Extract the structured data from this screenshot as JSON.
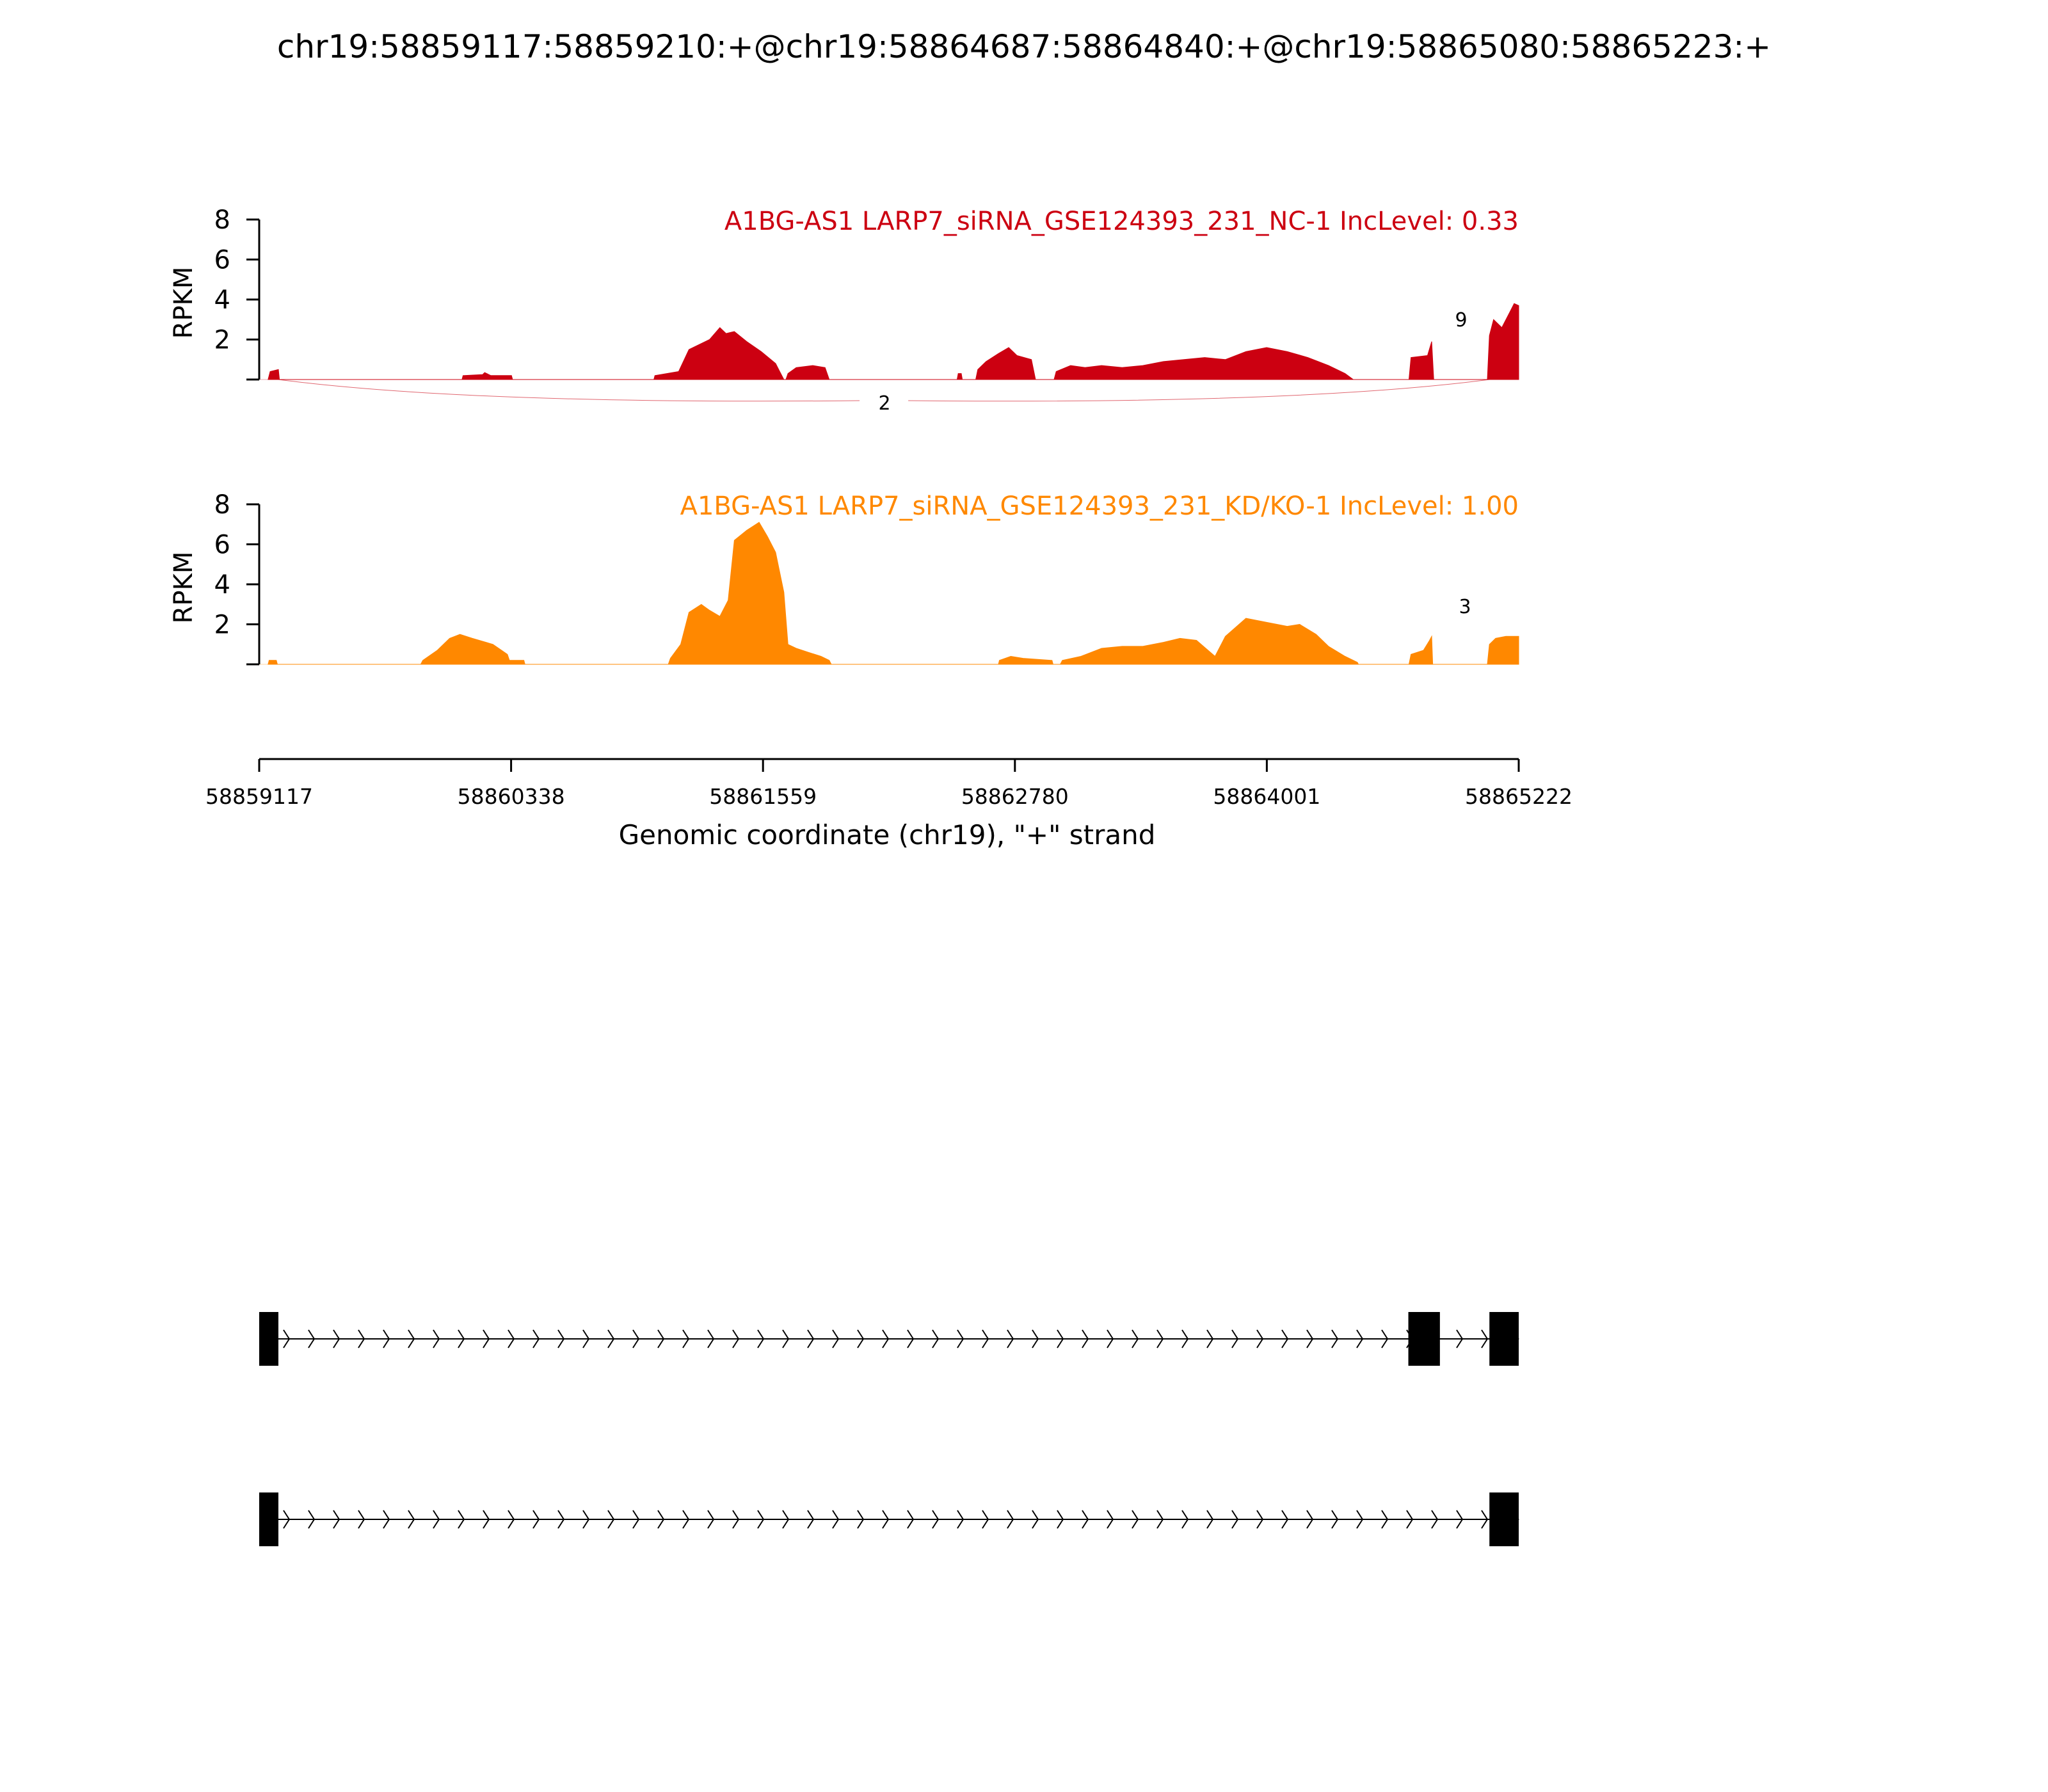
{
  "title": "chr19:58859117:58859210:+@chr19:58864687:58864840:+@chr19:58865080:58865223:+",
  "chart_data": {
    "type": "area",
    "xlabel": "Genomic coordinate (chr19), \"+\" strand",
    "xlim": [
      58859117,
      58865222
    ],
    "x_ticks": [
      "58859117",
      "58860338",
      "58861559",
      "58862780",
      "58864001",
      "58865222"
    ],
    "ylabel": "RPKM",
    "ylim": [
      0,
      8
    ],
    "y_ticks": [
      "8",
      "6",
      "4",
      "2"
    ],
    "tracks": [
      {
        "name": "A1BG-AS1 LARP7_siRNA_GSE124393_231_NC-1 IncLevel: 0.33",
        "color": "#cc0011",
        "profile": [
          [
            58859160,
            0
          ],
          [
            58859170,
            0.4
          ],
          [
            58859210,
            0.5
          ],
          [
            58859215,
            0
          ],
          [
            58860100,
            0
          ],
          [
            58860105,
            0.2
          ],
          [
            58860200,
            0.25
          ],
          [
            58860210,
            0.35
          ],
          [
            58860240,
            0.2
          ],
          [
            58860340,
            0.2
          ],
          [
            58860345,
            0
          ],
          [
            58861030,
            0
          ],
          [
            58861035,
            0.2
          ],
          [
            58861150,
            0.4
          ],
          [
            58861200,
            1.5
          ],
          [
            58861300,
            2.0
          ],
          [
            58861350,
            2.6
          ],
          [
            58861380,
            2.3
          ],
          [
            58861420,
            2.4
          ],
          [
            58861480,
            1.9
          ],
          [
            58861550,
            1.4
          ],
          [
            58861620,
            0.8
          ],
          [
            58861640,
            0.4
          ],
          [
            58861660,
            0
          ],
          [
            58861670,
            0
          ],
          [
            58861680,
            0.3
          ],
          [
            58861720,
            0.6
          ],
          [
            58861800,
            0.7
          ],
          [
            58861860,
            0.6
          ],
          [
            58861880,
            0
          ],
          [
            58862500,
            0
          ],
          [
            58862505,
            0.3
          ],
          [
            58862520,
            0.3
          ],
          [
            58862525,
            0
          ],
          [
            58862590,
            0
          ],
          [
            58862600,
            0.5
          ],
          [
            58862640,
            0.9
          ],
          [
            58862700,
            1.3
          ],
          [
            58862750,
            1.6
          ],
          [
            58862790,
            1.2
          ],
          [
            58862860,
            1.0
          ],
          [
            58862880,
            0
          ],
          [
            58862970,
            0
          ],
          [
            58862980,
            0.4
          ],
          [
            58863050,
            0.7
          ],
          [
            58863120,
            0.6
          ],
          [
            58863200,
            0.7
          ],
          [
            58863300,
            0.6
          ],
          [
            58863400,
            0.7
          ],
          [
            58863500,
            0.9
          ],
          [
            58863600,
            1.0
          ],
          [
            58863700,
            1.1
          ],
          [
            58863800,
            1.0
          ],
          [
            58863900,
            1.4
          ],
          [
            58864000,
            1.6
          ],
          [
            58864100,
            1.4
          ],
          [
            58864200,
            1.1
          ],
          [
            58864300,
            0.7
          ],
          [
            58864380,
            0.3
          ],
          [
            58864420,
            0
          ],
          [
            58864690,
            0
          ],
          [
            58864700,
            1.1
          ],
          [
            58864780,
            1.2
          ],
          [
            58864800,
            1.9
          ],
          [
            58864810,
            0
          ],
          [
            58865070,
            0
          ],
          [
            58865080,
            2.2
          ],
          [
            58865100,
            3.0
          ],
          [
            58865140,
            2.6
          ],
          [
            58865180,
            3.4
          ],
          [
            58865200,
            3.8
          ],
          [
            58865222,
            3.7
          ]
        ],
        "junctions": [
          {
            "label": "9"
          },
          {
            "label": "2"
          }
        ]
      },
      {
        "name": "A1BG-AS1 LARP7_siRNA_GSE124393_231_KD/KO-1 IncLevel: 1.00",
        "color": "#ff8800",
        "profile": [
          [
            58859160,
            0
          ],
          [
            58859165,
            0.2
          ],
          [
            58859200,
            0.2
          ],
          [
            58859205,
            0
          ],
          [
            58859900,
            0
          ],
          [
            58859910,
            0.2
          ],
          [
            58859980,
            0.7
          ],
          [
            58860040,
            1.3
          ],
          [
            58860090,
            1.5
          ],
          [
            58860150,
            1.3
          ],
          [
            58860250,
            1.0
          ],
          [
            58860320,
            0.5
          ],
          [
            58860330,
            0.2
          ],
          [
            58860400,
            0.2
          ],
          [
            58860405,
            0
          ],
          [
            58861100,
            0
          ],
          [
            58861110,
            0.3
          ],
          [
            58861160,
            1.0
          ],
          [
            58861200,
            2.6
          ],
          [
            58861260,
            3.0
          ],
          [
            58861300,
            2.7
          ],
          [
            58861350,
            2.4
          ],
          [
            58861390,
            3.2
          ],
          [
            58861420,
            6.2
          ],
          [
            58861480,
            6.7
          ],
          [
            58861540,
            7.1
          ],
          [
            58861580,
            6.4
          ],
          [
            58861620,
            5.6
          ],
          [
            58861660,
            3.6
          ],
          [
            58861680,
            1.0
          ],
          [
            58861720,
            0.8
          ],
          [
            58861780,
            0.6
          ],
          [
            58861840,
            0.4
          ],
          [
            58861880,
            0.2
          ],
          [
            58861890,
            0
          ],
          [
            58862700,
            0
          ],
          [
            58862705,
            0.2
          ],
          [
            58862760,
            0.4
          ],
          [
            58862820,
            0.3
          ],
          [
            58862960,
            0.2
          ],
          [
            58862965,
            0
          ],
          [
            58863000,
            0
          ],
          [
            58863010,
            0.2
          ],
          [
            58863100,
            0.4
          ],
          [
            58863200,
            0.8
          ],
          [
            58863300,
            0.9
          ],
          [
            58863400,
            0.9
          ],
          [
            58863500,
            1.1
          ],
          [
            58863580,
            1.3
          ],
          [
            58863660,
            1.2
          ],
          [
            58863750,
            0.4
          ],
          [
            58863800,
            1.4
          ],
          [
            58863900,
            2.3
          ],
          [
            58864000,
            2.1
          ],
          [
            58864100,
            1.9
          ],
          [
            58864160,
            2.0
          ],
          [
            58864240,
            1.5
          ],
          [
            58864300,
            0.9
          ],
          [
            58864380,
            0.4
          ],
          [
            58864440,
            0.1
          ],
          [
            58864445,
            0
          ],
          [
            58864690,
            0
          ],
          [
            58864700,
            0.5
          ],
          [
            58864760,
            0.7
          ],
          [
            58864790,
            1.2
          ],
          [
            58864800,
            1.4
          ],
          [
            58864805,
            0
          ],
          [
            58865070,
            0
          ],
          [
            58865080,
            1.0
          ],
          [
            58865110,
            1.3
          ],
          [
            58865160,
            1.4
          ],
          [
            58865222,
            1.4
          ]
        ],
        "junctions": [
          {
            "label": "3"
          }
        ]
      }
    ],
    "isoforms": [
      {
        "exons": [
          [
            58859117,
            58859210
          ],
          [
            58864687,
            58864840
          ],
          [
            58865080,
            58865223
          ]
        ]
      },
      {
        "exons": [
          [
            58859117,
            58859210
          ],
          [
            58865080,
            58865223
          ]
        ]
      }
    ]
  }
}
